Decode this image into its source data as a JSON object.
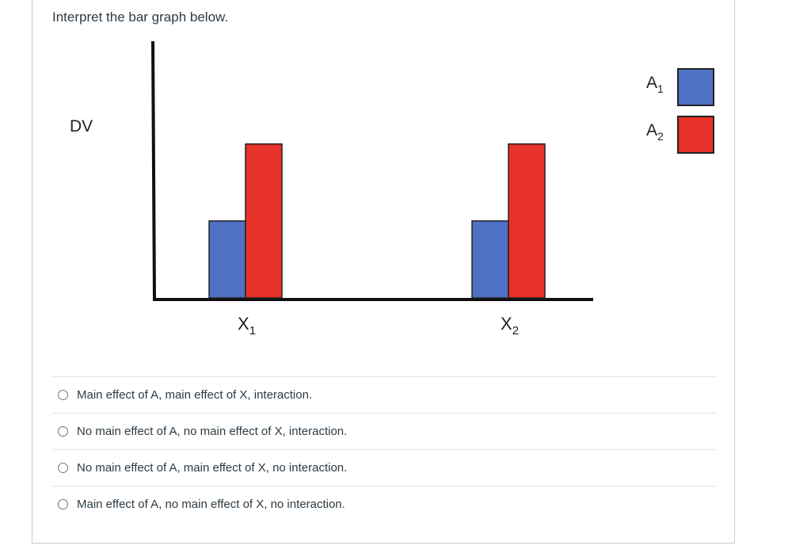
{
  "question": {
    "prompt": "Interpret the bar graph below."
  },
  "chart_data": {
    "type": "bar",
    "ylabel": "DV",
    "categories": [
      {
        "label": "X",
        "sub": "1"
      },
      {
        "label": "X",
        "sub": "2"
      }
    ],
    "series": [
      {
        "name_main": "A",
        "name_sub": "1",
        "color": "#4e71c5",
        "values": [
          5,
          5
        ]
      },
      {
        "name_main": "A",
        "name_sub": "2",
        "color": "#e7322a",
        "values": [
          10,
          10
        ]
      }
    ],
    "ylim": [
      0,
      14
    ],
    "legend_position": "top-right",
    "grid": false
  },
  "answers": [
    {
      "label": "Main effect of A, main effect of X, interaction."
    },
    {
      "label": "No main effect of A, no main effect of X, interaction."
    },
    {
      "label": "No main effect of A, main effect of X, no interaction."
    },
    {
      "label": "Main effect of A, no main effect of X, no interaction."
    }
  ]
}
